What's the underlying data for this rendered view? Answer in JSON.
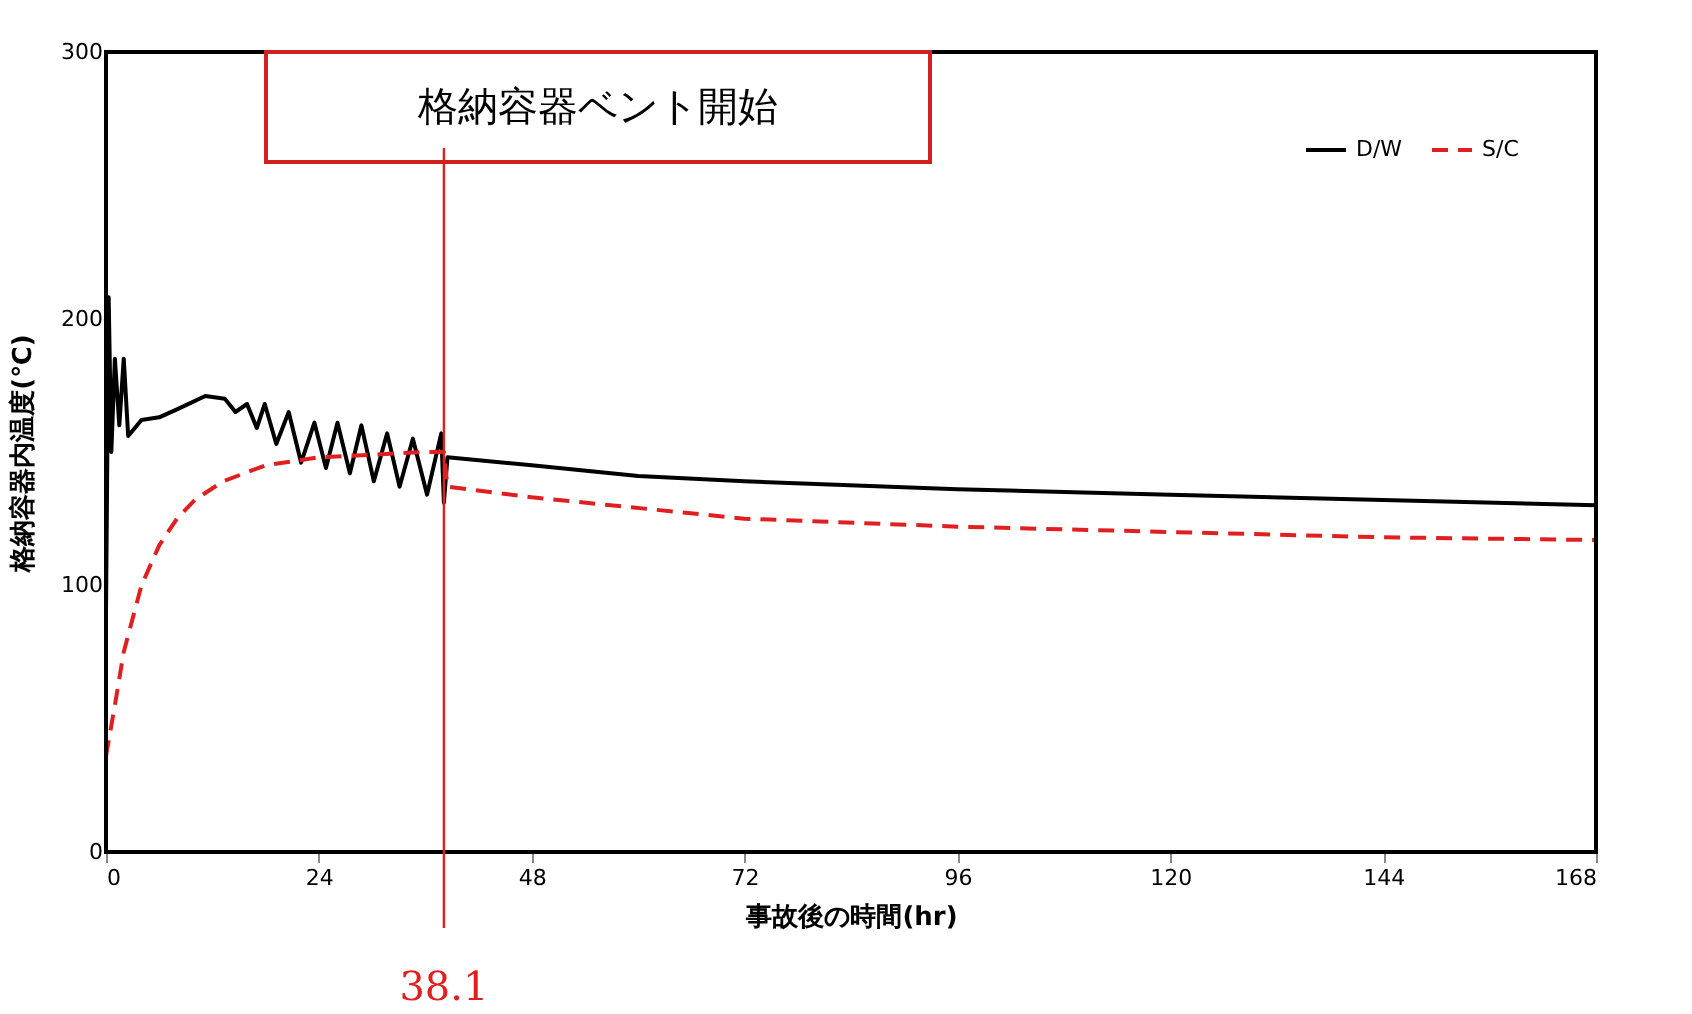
{
  "chart_data": {
    "type": "line",
    "xlabel": "事故後の時間(hr)",
    "ylabel": "格納容器内温度(℃)",
    "xlim": [
      0,
      168
    ],
    "xticks": [
      0,
      24,
      48,
      72,
      96,
      120,
      144,
      168
    ],
    "ylim": [
      0,
      300
    ],
    "yticks": [
      0,
      100,
      200,
      300
    ],
    "grid": false,
    "legend": "top right",
    "marker": "none",
    "series": [
      {
        "name": "D/W",
        "color": "#000000",
        "line_style": "solid",
        "x": [
          0,
          0.3,
          0.6,
          1,
          1.5,
          2,
          2.5,
          4,
          6,
          8,
          11.2,
          13.4,
          14.6,
          15.9,
          17,
          17.9,
          19.2,
          20.6,
          22,
          23.5,
          24.8,
          26.1,
          27.5,
          28.8,
          30.2,
          31.7,
          33.1,
          34.6,
          36.2,
          37.8,
          38.1,
          38.5,
          48,
          60,
          72,
          96,
          120,
          144,
          168
        ],
        "values": [
          90,
          208,
          150,
          185,
          160,
          185,
          156,
          162,
          163,
          166,
          171,
          170,
          165,
          168,
          159,
          168,
          153,
          165,
          146,
          161,
          144,
          161,
          142,
          160,
          139,
          157,
          137,
          155,
          134,
          157,
          131,
          148,
          145,
          141,
          139,
          136,
          134,
          132,
          130
        ]
      },
      {
        "name": "S/C",
        "color": "#e02020",
        "line_style": "dashed",
        "x": [
          0,
          1,
          2,
          4,
          6,
          8,
          10,
          13.2,
          18,
          24,
          30,
          36,
          38.1,
          38.5,
          48,
          72,
          96,
          120,
          144,
          168
        ],
        "values": [
          36,
          55,
          75,
          100,
          115,
          125,
          132,
          139,
          145,
          148,
          149,
          150,
          150,
          137,
          133,
          125,
          122,
          120,
          118,
          117
        ]
      }
    ],
    "ref_lines": [
      {
        "axis": "x",
        "value": 38.1,
        "label": "38.1",
        "color": "#e02020"
      }
    ],
    "annotations": [
      "格納容器ベント開始"
    ]
  }
}
